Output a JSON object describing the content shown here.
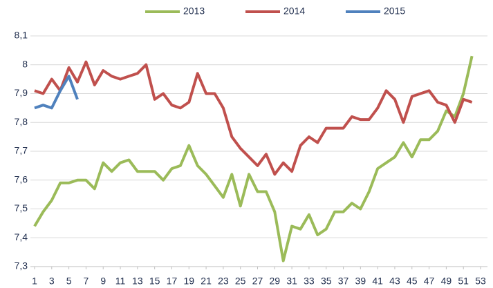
{
  "chart_data": {
    "type": "line",
    "x": [
      1,
      2,
      3,
      4,
      5,
      6,
      7,
      8,
      9,
      10,
      11,
      12,
      13,
      14,
      15,
      16,
      17,
      18,
      19,
      20,
      21,
      22,
      23,
      24,
      25,
      26,
      27,
      28,
      29,
      30,
      31,
      32,
      33,
      34,
      35,
      36,
      37,
      38,
      39,
      40,
      41,
      42,
      43,
      44,
      45,
      46,
      47,
      48,
      49,
      50,
      51,
      52
    ],
    "series": [
      {
        "name": "2013",
        "color": "#9bbb59",
        "values": [
          7.44,
          7.49,
          7.53,
          7.59,
          7.59,
          7.6,
          7.6,
          7.57,
          7.66,
          7.63,
          7.66,
          7.67,
          7.63,
          7.63,
          7.63,
          7.6,
          7.64,
          7.65,
          7.72,
          7.65,
          7.62,
          7.58,
          7.54,
          7.62,
          7.51,
          7.62,
          7.56,
          7.56,
          7.49,
          7.32,
          7.44,
          7.43,
          7.48,
          7.41,
          7.43,
          7.49,
          7.49,
          7.52,
          7.5,
          7.56,
          7.64,
          7.66,
          7.68,
          7.73,
          7.68,
          7.74,
          7.74,
          7.77,
          7.84,
          7.82,
          7.9,
          8.03
        ]
      },
      {
        "name": "2014",
        "color": "#c0504d",
        "values": [
          7.91,
          7.9,
          7.95,
          7.91,
          7.99,
          7.94,
          8.01,
          7.93,
          7.98,
          7.96,
          7.95,
          7.96,
          7.97,
          8.0,
          7.88,
          7.9,
          7.86,
          7.85,
          7.87,
          7.97,
          7.9,
          7.9,
          7.85,
          7.75,
          7.71,
          7.68,
          7.65,
          7.69,
          7.62,
          7.66,
          7.63,
          7.72,
          7.75,
          7.73,
          7.78,
          7.78,
          7.78,
          7.82,
          7.81,
          7.81,
          7.85,
          7.91,
          7.88,
          7.8,
          7.89,
          7.9,
          7.91,
          7.87,
          7.86,
          7.8,
          7.88,
          7.87
        ]
      },
      {
        "name": "2015",
        "color": "#4f81bd",
        "values": [
          7.85,
          7.86,
          7.85,
          7.91,
          7.96,
          7.88,
          null,
          null,
          null,
          null,
          null,
          null,
          null,
          null,
          null,
          null,
          null,
          null,
          null,
          null,
          null,
          null,
          null,
          null,
          null,
          null,
          null,
          null,
          null,
          null,
          null,
          null,
          null,
          null,
          null,
          null,
          null,
          null,
          null,
          null,
          null,
          null,
          null,
          null,
          null,
          null,
          null,
          null,
          null,
          null,
          null,
          null
        ]
      }
    ],
    "xlim": [
      1,
      53
    ],
    "xticks": [
      1,
      3,
      5,
      7,
      9,
      11,
      13,
      15,
      17,
      19,
      21,
      23,
      25,
      27,
      29,
      31,
      33,
      35,
      37,
      39,
      41,
      43,
      45,
      47,
      49,
      51,
      53
    ],
    "ylim": [
      7.3,
      8.1
    ],
    "yticks": [
      {
        "value": 7.3,
        "label": "7,3"
      },
      {
        "value": 7.4,
        "label": "7,4"
      },
      {
        "value": 7.5,
        "label": "7,5"
      },
      {
        "value": 7.6,
        "label": "7,6"
      },
      {
        "value": 7.7,
        "label": "7,7"
      },
      {
        "value": 7.8,
        "label": "7,8"
      },
      {
        "value": 7.9,
        "label": "7,9"
      },
      8,
      {
        "value": 8.1,
        "label": "8,1"
      }
    ],
    "grid": true,
    "legend": "top"
  }
}
